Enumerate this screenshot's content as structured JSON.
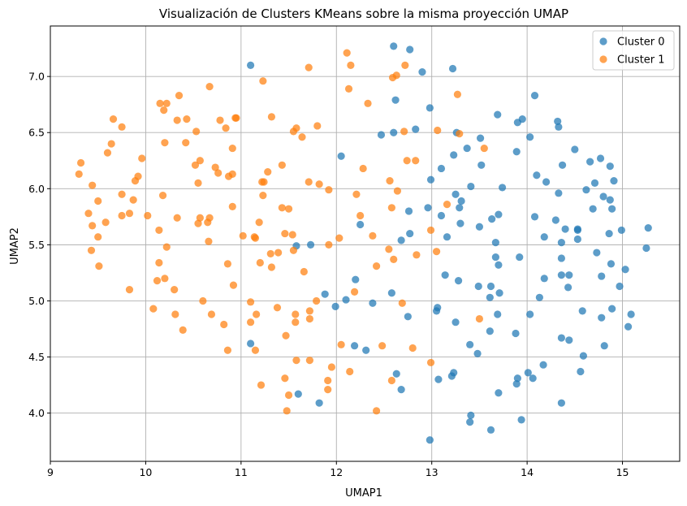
{
  "chart_data": {
    "type": "scatter",
    "title": "Visualización de Clusters KMeans sobre la misma proyección UMAP",
    "xlabel": "UMAP1",
    "ylabel": "UMAP2",
    "xlim": [
      9.0,
      15.6
    ],
    "ylim": [
      3.57,
      7.45
    ],
    "xticks": [
      "9",
      "10",
      "11",
      "12",
      "13",
      "14",
      "15"
    ],
    "yticks": [
      "4.0",
      "4.5",
      "5.0",
      "5.5",
      "6.0",
      "6.5",
      "7.0"
    ],
    "grid": true,
    "legend_position": "top-right",
    "series": [
      {
        "name": "Cluster 0",
        "color": "#1f77b4",
        "points": [
          [
            11.1,
            7.1
          ],
          [
            12.6,
            7.27
          ],
          [
            12.77,
            7.24
          ],
          [
            13.22,
            7.07
          ],
          [
            12.9,
            7.04
          ],
          [
            12.62,
            6.79
          ],
          [
            14.08,
            6.83
          ],
          [
            12.98,
            6.72
          ],
          [
            13.69,
            6.66
          ],
          [
            13.95,
            6.62
          ],
          [
            14.32,
            6.6
          ],
          [
            14.33,
            6.55
          ],
          [
            12.83,
            6.53
          ],
          [
            12.6,
            6.5
          ],
          [
            12.47,
            6.48
          ],
          [
            13.26,
            6.5
          ],
          [
            13.9,
            6.59
          ],
          [
            13.51,
            6.45
          ],
          [
            14.03,
            6.46
          ],
          [
            13.37,
            6.36
          ],
          [
            14.5,
            6.35
          ],
          [
            13.23,
            6.3
          ],
          [
            12.05,
            6.29
          ],
          [
            13.89,
            6.33
          ],
          [
            14.77,
            6.27
          ],
          [
            14.66,
            6.24
          ],
          [
            14.87,
            6.2
          ],
          [
            14.37,
            6.21
          ],
          [
            13.52,
            6.21
          ],
          [
            13.1,
            6.18
          ],
          [
            12.99,
            6.08
          ],
          [
            14.1,
            6.12
          ],
          [
            14.71,
            6.05
          ],
          [
            14.91,
            6.07
          ],
          [
            14.2,
            6.06
          ],
          [
            13.74,
            6.01
          ],
          [
            13.41,
            6.02
          ],
          [
            13.25,
            5.95
          ],
          [
            14.33,
            5.96
          ],
          [
            14.62,
            5.99
          ],
          [
            14.8,
            5.93
          ],
          [
            14.87,
            5.9
          ],
          [
            13.31,
            5.89
          ],
          [
            13.29,
            5.83
          ],
          [
            12.96,
            5.83
          ],
          [
            14.69,
            5.82
          ],
          [
            14.89,
            5.82
          ],
          [
            12.76,
            5.8
          ],
          [
            13.1,
            5.76
          ],
          [
            13.7,
            5.77
          ],
          [
            14.08,
            5.75
          ],
          [
            13.63,
            5.73
          ],
          [
            14.3,
            5.72
          ],
          [
            14.4,
            5.64
          ],
          [
            14.53,
            5.64
          ],
          [
            14.53,
            5.63
          ],
          [
            12.25,
            5.68
          ],
          [
            13.3,
            5.69
          ],
          [
            14.99,
            5.63
          ],
          [
            15.27,
            5.65
          ],
          [
            13.5,
            5.66
          ],
          [
            14.18,
            5.57
          ],
          [
            14.53,
            5.55
          ],
          [
            14.86,
            5.6
          ],
          [
            12.77,
            5.6
          ],
          [
            13.16,
            5.57
          ],
          [
            12.68,
            5.54
          ],
          [
            11.73,
            5.5
          ],
          [
            11.58,
            5.49
          ],
          [
            13.67,
            5.52
          ],
          [
            14.36,
            5.52
          ],
          [
            14.73,
            5.43
          ],
          [
            15.25,
            5.47
          ],
          [
            13.67,
            5.39
          ],
          [
            13.92,
            5.39
          ],
          [
            14.36,
            5.38
          ],
          [
            14.88,
            5.33
          ],
          [
            13.7,
            5.32
          ],
          [
            15.03,
            5.28
          ],
          [
            14.36,
            5.23
          ],
          [
            14.44,
            5.23
          ],
          [
            13.14,
            5.23
          ],
          [
            13.28,
            5.18
          ],
          [
            12.2,
            5.19
          ],
          [
            14.78,
            5.22
          ],
          [
            14.18,
            5.2
          ],
          [
            13.49,
            5.13
          ],
          [
            13.62,
            5.13
          ],
          [
            14.43,
            5.12
          ],
          [
            14.97,
            5.13
          ],
          [
            12.58,
            5.07
          ],
          [
            11.88,
            5.06
          ],
          [
            13.71,
            5.07
          ],
          [
            13.61,
            5.03
          ],
          [
            14.13,
            5.03
          ],
          [
            12.1,
            5.01
          ],
          [
            12.38,
            4.98
          ],
          [
            11.99,
            4.95
          ],
          [
            13.06,
            4.94
          ],
          [
            13.05,
            4.91
          ],
          [
            14.89,
            4.93
          ],
          [
            14.58,
            4.91
          ],
          [
            13.69,
            4.88
          ],
          [
            14.03,
            4.88
          ],
          [
            15.09,
            4.88
          ],
          [
            12.75,
            4.86
          ],
          [
            13.25,
            4.81
          ],
          [
            14.78,
            4.85
          ],
          [
            15.06,
            4.77
          ],
          [
            13.61,
            4.73
          ],
          [
            13.88,
            4.71
          ],
          [
            14.36,
            4.67
          ],
          [
            14.44,
            4.65
          ],
          [
            11.1,
            4.62
          ],
          [
            12.19,
            4.6
          ],
          [
            14.81,
            4.6
          ],
          [
            13.4,
            4.61
          ],
          [
            12.31,
            4.56
          ],
          [
            14.17,
            4.43
          ],
          [
            13.48,
            4.53
          ],
          [
            14.59,
            4.51
          ],
          [
            14.01,
            4.36
          ],
          [
            14.56,
            4.37
          ],
          [
            12.63,
            4.35
          ],
          [
            13.21,
            4.33
          ],
          [
            13.23,
            4.36
          ],
          [
            13.9,
            4.31
          ],
          [
            14.06,
            4.31
          ],
          [
            13.07,
            4.3
          ],
          [
            13.89,
            4.26
          ],
          [
            12.68,
            4.21
          ],
          [
            13.7,
            4.18
          ],
          [
            11.6,
            4.17
          ],
          [
            11.82,
            4.09
          ],
          [
            14.36,
            4.09
          ],
          [
            13.41,
            3.98
          ],
          [
            13.4,
            3.92
          ],
          [
            13.94,
            3.94
          ],
          [
            13.62,
            3.85
          ],
          [
            12.98,
            3.76
          ]
        ]
      },
      {
        "name": "Cluster 1",
        "color": "#ff7f0e",
        "points": [
          [
            12.11,
            7.21
          ],
          [
            12.15,
            7.1
          ],
          [
            11.71,
            7.08
          ],
          [
            12.72,
            7.1
          ],
          [
            12.63,
            7.01
          ],
          [
            12.59,
            6.99
          ],
          [
            11.23,
            6.96
          ],
          [
            12.13,
            6.89
          ],
          [
            10.67,
            6.91
          ],
          [
            10.35,
            6.83
          ],
          [
            13.27,
            6.84
          ],
          [
            10.15,
            6.76
          ],
          [
            10.22,
            6.76
          ],
          [
            12.33,
            6.76
          ],
          [
            10.19,
            6.7
          ],
          [
            11.32,
            6.64
          ],
          [
            9.66,
            6.62
          ],
          [
            10.94,
            6.63
          ],
          [
            10.95,
            6.63
          ],
          [
            10.43,
            6.62
          ],
          [
            10.33,
            6.61
          ],
          [
            10.78,
            6.61
          ],
          [
            9.75,
            6.55
          ],
          [
            10.84,
            6.54
          ],
          [
            11.8,
            6.56
          ],
          [
            11.58,
            6.54
          ],
          [
            12.71,
            6.51
          ],
          [
            11.55,
            6.51
          ],
          [
            13.06,
            6.52
          ],
          [
            13.29,
            6.49
          ],
          [
            10.53,
            6.51
          ],
          [
            11.64,
            6.46
          ],
          [
            10.2,
            6.41
          ],
          [
            9.64,
            6.4
          ],
          [
            10.42,
            6.41
          ],
          [
            10.91,
            6.36
          ],
          [
            13.55,
            6.36
          ],
          [
            9.6,
            6.32
          ],
          [
            9.96,
            6.27
          ],
          [
            10.57,
            6.25
          ],
          [
            9.32,
            6.23
          ],
          [
            10.52,
            6.21
          ],
          [
            11.43,
            6.21
          ],
          [
            10.73,
            6.19
          ],
          [
            12.74,
            6.25
          ],
          [
            12.83,
            6.25
          ],
          [
            12.28,
            6.18
          ],
          [
            10.76,
            6.14
          ],
          [
            11.28,
            6.15
          ],
          [
            9.89,
            6.07
          ],
          [
            9.3,
            6.13
          ],
          [
            9.92,
            6.11
          ],
          [
            10.91,
            6.13
          ],
          [
            10.87,
            6.11
          ],
          [
            11.71,
            6.06
          ],
          [
            11.82,
            6.04
          ],
          [
            11.22,
            6.06
          ],
          [
            9.44,
            6.03
          ],
          [
            12.56,
            6.07
          ],
          [
            11.24,
            6.06
          ],
          [
            10.55,
            6.05
          ],
          [
            11.92,
            5.99
          ],
          [
            9.75,
            5.95
          ],
          [
            12.64,
            5.98
          ],
          [
            11.23,
            5.94
          ],
          [
            12.21,
            5.95
          ],
          [
            10.18,
            5.94
          ],
          [
            9.5,
            5.89
          ],
          [
            9.87,
            5.9
          ],
          [
            10.91,
            5.84
          ],
          [
            11.43,
            5.83
          ],
          [
            11.5,
            5.82
          ],
          [
            12.58,
            5.83
          ],
          [
            9.83,
            5.78
          ],
          [
            10.02,
            5.76
          ],
          [
            9.4,
            5.78
          ],
          [
            9.75,
            5.76
          ],
          [
            10.57,
            5.74
          ],
          [
            10.67,
            5.74
          ],
          [
            10.33,
            5.74
          ],
          [
            12.25,
            5.76
          ],
          [
            10.65,
            5.7
          ],
          [
            10.55,
            5.69
          ],
          [
            9.58,
            5.7
          ],
          [
            11.19,
            5.7
          ],
          [
            9.44,
            5.67
          ],
          [
            13.16,
            5.86
          ],
          [
            10.14,
            5.63
          ],
          [
            11.14,
            5.57
          ],
          [
            11.15,
            5.56
          ],
          [
            12.99,
            5.63
          ],
          [
            9.5,
            5.57
          ],
          [
            11.02,
            5.58
          ],
          [
            11.46,
            5.6
          ],
          [
            11.54,
            5.59
          ],
          [
            12.03,
            5.56
          ],
          [
            12.38,
            5.58
          ],
          [
            10.66,
            5.53
          ],
          [
            11.92,
            5.5
          ],
          [
            10.22,
            5.48
          ],
          [
            11.55,
            5.45
          ],
          [
            12.55,
            5.46
          ],
          [
            9.43,
            5.45
          ],
          [
            13.05,
            5.44
          ],
          [
            11.39,
            5.43
          ],
          [
            11.31,
            5.42
          ],
          [
            12.84,
            5.41
          ],
          [
            12.6,
            5.37
          ],
          [
            10.14,
            5.34
          ],
          [
            11.2,
            5.34
          ],
          [
            9.51,
            5.31
          ],
          [
            10.86,
            5.33
          ],
          [
            11.32,
            5.3
          ],
          [
            12.42,
            5.31
          ],
          [
            11.66,
            5.26
          ],
          [
            10.2,
            5.2
          ],
          [
            10.12,
            5.18
          ],
          [
            10.92,
            5.14
          ],
          [
            9.83,
            5.1
          ],
          [
            10.3,
            5.1
          ],
          [
            12.19,
            5.08
          ],
          [
            10.6,
            5.0
          ],
          [
            11.79,
            5.0
          ],
          [
            11.1,
            4.99
          ],
          [
            12.69,
            4.98
          ],
          [
            11.38,
            4.94
          ],
          [
            10.08,
            4.93
          ],
          [
            11.72,
            4.91
          ],
          [
            11.16,
            4.88
          ],
          [
            10.31,
            4.88
          ],
          [
            10.69,
            4.88
          ],
          [
            11.57,
            4.88
          ],
          [
            11.72,
            4.84
          ],
          [
            13.5,
            4.84
          ],
          [
            11.57,
            4.81
          ],
          [
            10.82,
            4.79
          ],
          [
            11.1,
            4.81
          ],
          [
            10.39,
            4.74
          ],
          [
            11.47,
            4.69
          ],
          [
            12.05,
            4.61
          ],
          [
            12.48,
            4.6
          ],
          [
            12.8,
            4.58
          ],
          [
            10.86,
            4.56
          ],
          [
            11.15,
            4.56
          ],
          [
            11.58,
            4.47
          ],
          [
            11.72,
            4.47
          ],
          [
            12.99,
            4.45
          ],
          [
            11.95,
            4.41
          ],
          [
            12.14,
            4.37
          ],
          [
            11.46,
            4.31
          ],
          [
            11.91,
            4.29
          ],
          [
            12.58,
            4.29
          ],
          [
            11.21,
            4.25
          ],
          [
            11.91,
            4.21
          ],
          [
            11.5,
            4.16
          ],
          [
            11.48,
            4.02
          ],
          [
            12.42,
            4.02
          ]
        ]
      }
    ]
  }
}
